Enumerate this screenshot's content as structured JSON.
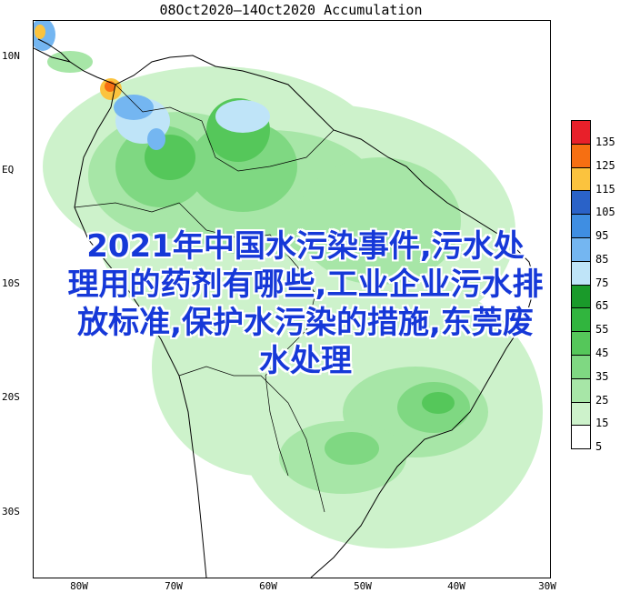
{
  "map": {
    "title": "08Oct2020—14Oct2020 Accumulation",
    "lat_labels": [
      "10N",
      "EQ",
      "10S",
      "20S",
      "30S"
    ],
    "lon_labels": [
      "80W",
      "70W",
      "60W",
      "50W",
      "40W",
      "30W"
    ]
  },
  "legend": {
    "values": [
      "135",
      "125",
      "115",
      "105",
      "95",
      "85",
      "75",
      "65",
      "55",
      "45",
      "35",
      "25",
      "15",
      "5"
    ],
    "colors": [
      "#e8202a",
      "#f66f12",
      "#fbc33e",
      "#2a62c8",
      "#3f8ee2",
      "#74b6f1",
      "#bfe4f8",
      "#1a9a2a",
      "#31b53e",
      "#55c75a",
      "#7fd882",
      "#a7e6a7",
      "#cdf2cb",
      "#ffffff"
    ]
  },
  "overlay": {
    "lines": [
      "2021年中国水污染事件,污水处",
      "理用的药剂有哪些,工业企业污水排",
      "放标准,保护水污染的措施,东莞废",
      "水处理"
    ]
  }
}
